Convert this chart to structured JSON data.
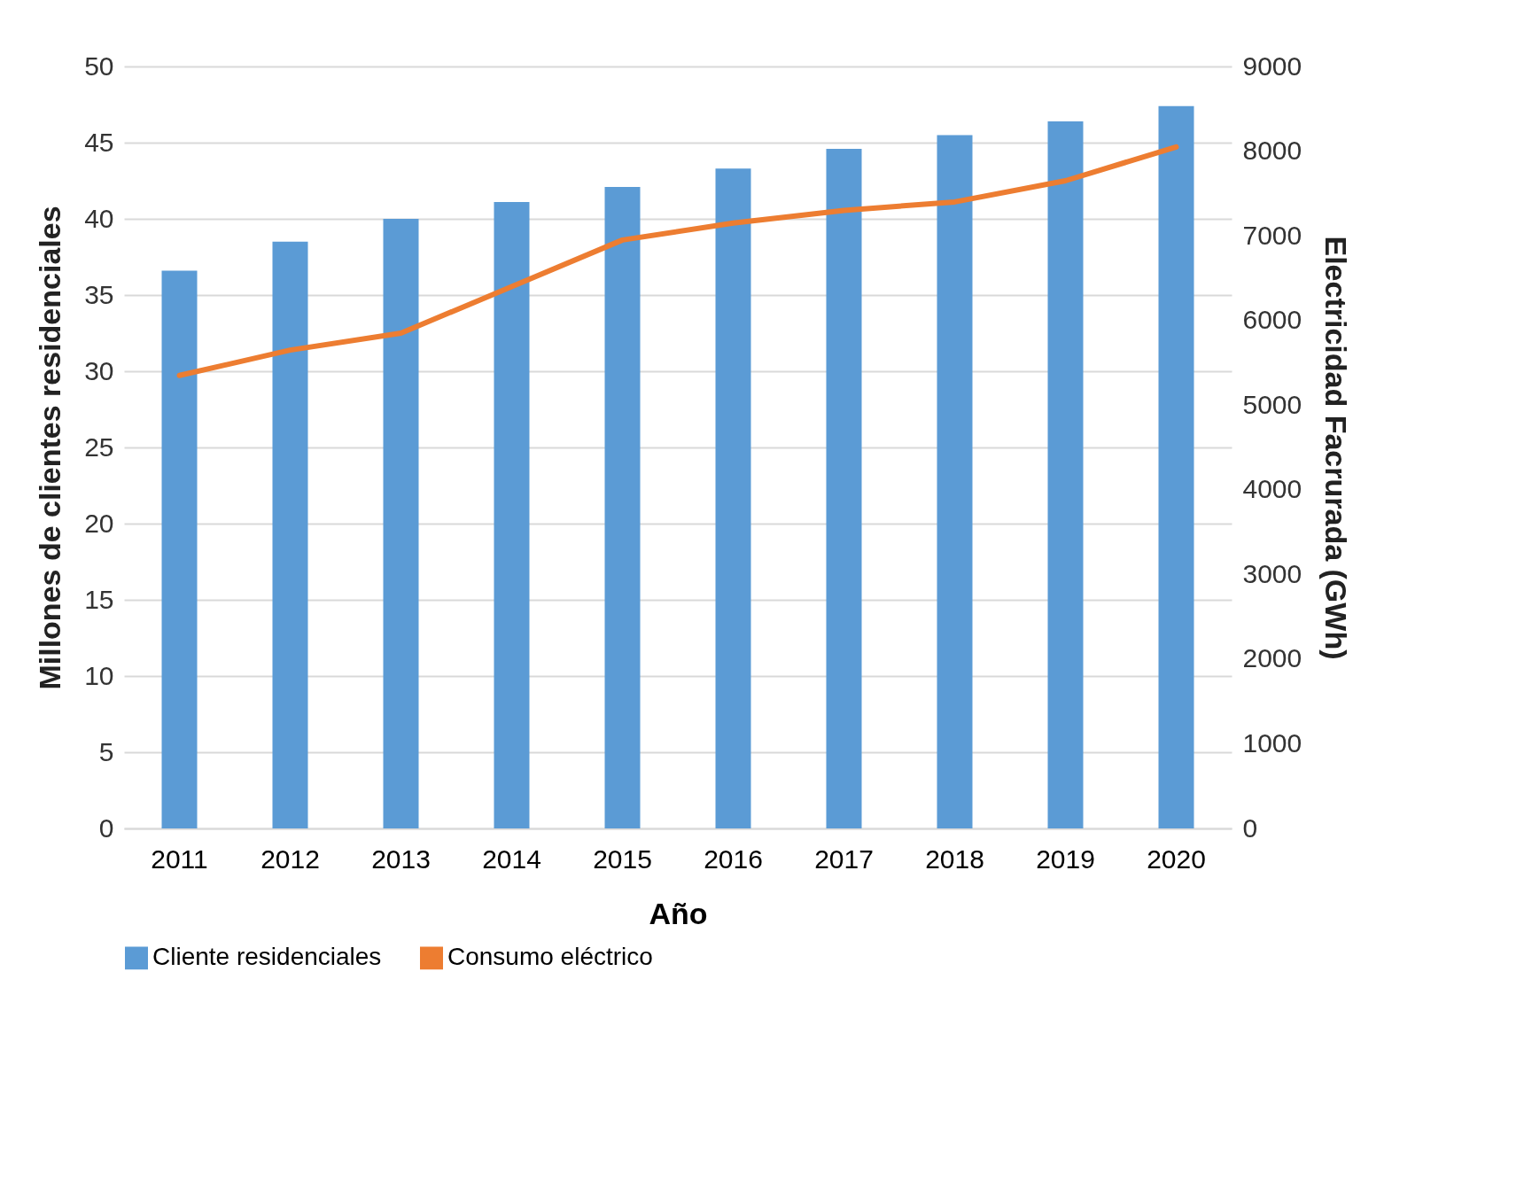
{
  "chart_data": {
    "type": "bar",
    "xlabel": "Año",
    "ylabel": "Millones de clientes residenciales",
    "y2label": "Electricidad Facrurada (GWh)",
    "categories": [
      "2011",
      "2012",
      "2013",
      "2014",
      "2015",
      "2016",
      "2017",
      "2018",
      "2019",
      "2020"
    ],
    "series": [
      {
        "name": "Cliente residenciales",
        "color": "#5b9bd5",
        "values": [
          36.6,
          38.5,
          40.0,
          41.1,
          42.1,
          43.3,
          44.6,
          45.5,
          46.4,
          47.4
        ]
      },
      {
        "name": "Consumo eléctrico",
        "type": "line",
        "axis": "y2",
        "color": "#ed7d31",
        "values": [
          5350,
          5650,
          5850,
          6400,
          6950,
          7150,
          7300,
          7400,
          7650,
          8050
        ]
      }
    ],
    "ylim": [
      0,
      50
    ],
    "yticks": [
      0,
      5,
      10,
      15,
      20,
      25,
      30,
      35,
      40,
      45,
      50
    ],
    "y2lim": [
      0,
      9000
    ],
    "y2ticks": [
      0,
      1000,
      2000,
      3000,
      4000,
      5000,
      6000,
      7000,
      8000,
      9000
    ],
    "grid": "y",
    "legend": "bottom",
    "marker": "none",
    "line_style": "solid"
  }
}
